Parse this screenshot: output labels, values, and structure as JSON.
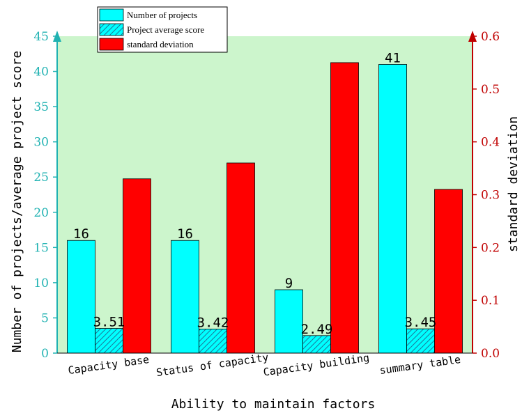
{
  "chart_data": {
    "type": "bar",
    "categories": [
      "Capacity base",
      "Status of capacity",
      "Capacity building",
      "summary table"
    ],
    "series": [
      {
        "name": "Number of projects",
        "axis": "left",
        "color": "#00ffff",
        "pattern": "solid",
        "values": [
          16,
          16,
          9,
          41
        ],
        "labels": [
          "16",
          "16",
          "9",
          "41"
        ]
      },
      {
        "name": "Project average score",
        "axis": "left",
        "color": "#00ffff",
        "pattern": "hatched",
        "values": [
          3.51,
          3.42,
          2.49,
          3.45
        ],
        "labels": [
          "3.51",
          "3.42",
          "2.49",
          "3.45"
        ]
      },
      {
        "name": "standard deviation",
        "axis": "right",
        "color": "#ff0000",
        "pattern": "solid",
        "values": [
          0.33,
          0.36,
          0.55,
          0.31
        ],
        "labels": []
      }
    ],
    "xlabel": "Ability to maintain factors",
    "ylabel_left": "Number of projects/average project score",
    "ylabel_right": "standard deviation",
    "ylim_left": [
      0,
      45
    ],
    "yticks_left": [
      "0",
      "5",
      "10",
      "15",
      "20",
      "25",
      "30",
      "35",
      "40",
      "45"
    ],
    "ylim_right": [
      0,
      0.6
    ],
    "yticks_right": [
      "0.0",
      "0.1",
      "0.2",
      "0.3",
      "0.4",
      "0.5",
      "0.6"
    ],
    "left_axis_color": "#20b2b2",
    "right_axis_color": "#c00000",
    "plot_background": "#ccf5cc",
    "grid": false,
    "legend_position": "top-left"
  }
}
